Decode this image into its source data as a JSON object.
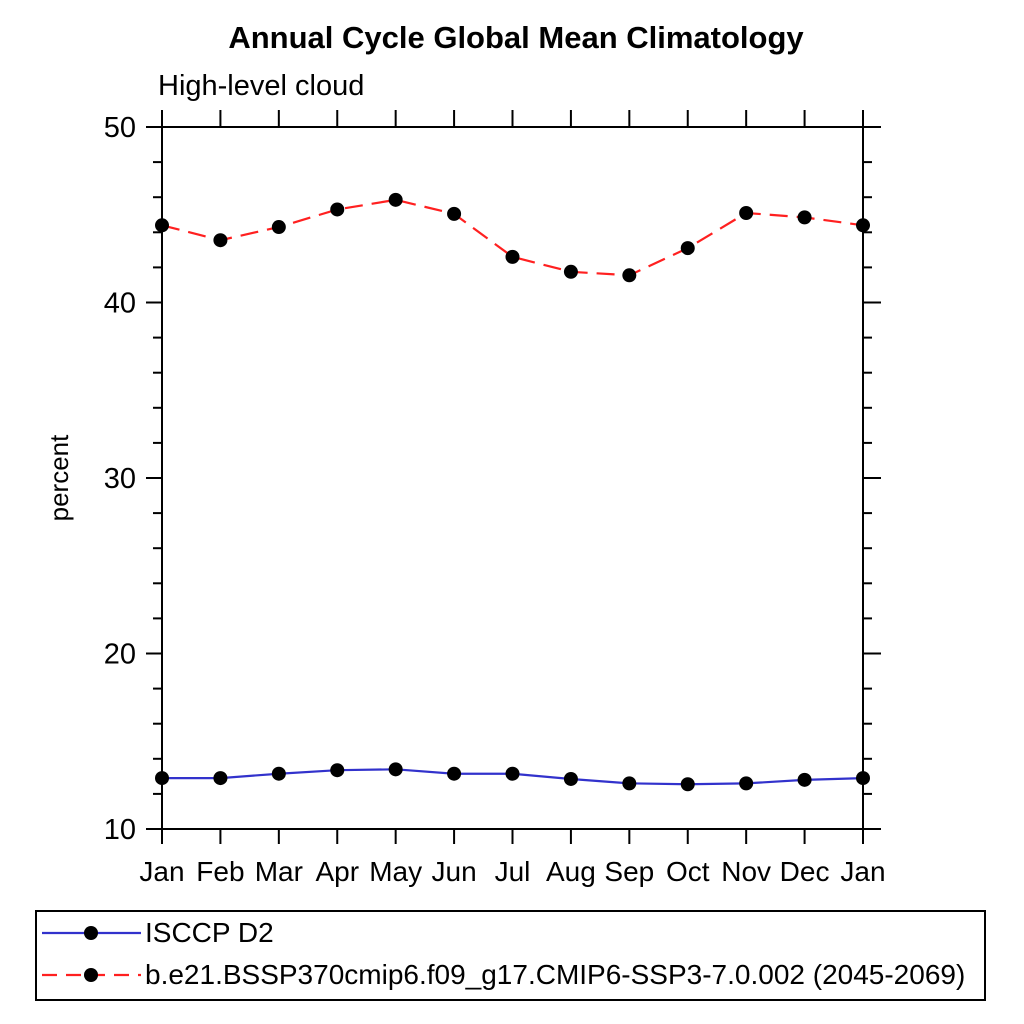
{
  "header": {
    "title": "Annual Cycle Global Mean Climatology",
    "subtitle": "High-level cloud"
  },
  "chart_data": {
    "type": "line",
    "title": "Annual Cycle Global Mean Climatology",
    "subtitle": "High-level cloud",
    "xlabel": "",
    "ylabel": "percent",
    "ylim": [
      10,
      50
    ],
    "ytick_major": [
      10,
      20,
      30,
      40,
      50
    ],
    "ytick_minor_step": 2,
    "grid": false,
    "frame": true,
    "tick_direction": "out",
    "legend_position": "bottom-left-box",
    "categories": [
      "Jan",
      "Feb",
      "Mar",
      "Apr",
      "May",
      "Jun",
      "Jul",
      "Aug",
      "Sep",
      "Oct",
      "Nov",
      "Dec",
      "Jan"
    ],
    "series": [
      {
        "name": "ISCCP D2",
        "color": "#3232cc",
        "line_style": "solid",
        "marker": "filled-circle",
        "marker_color": "#000000",
        "values": [
          12.9,
          12.9,
          13.15,
          13.35,
          13.4,
          13.15,
          13.15,
          12.85,
          12.6,
          12.55,
          12.6,
          12.8,
          12.9
        ]
      },
      {
        "name": "b.e21.BSSP370cmip6.f09_g17.CMIP6-SSP3-7.0.002 (2045-2069)",
        "color": "#ff2020",
        "line_style": "dashed",
        "marker": "filled-circle",
        "marker_color": "#000000",
        "values": [
          44.4,
          43.55,
          44.3,
          45.3,
          45.85,
          45.05,
          42.6,
          41.75,
          41.55,
          43.1,
          45.1,
          44.85,
          44.4
        ]
      }
    ],
    "axis_color": "#000000",
    "text_color": "#000000"
  }
}
